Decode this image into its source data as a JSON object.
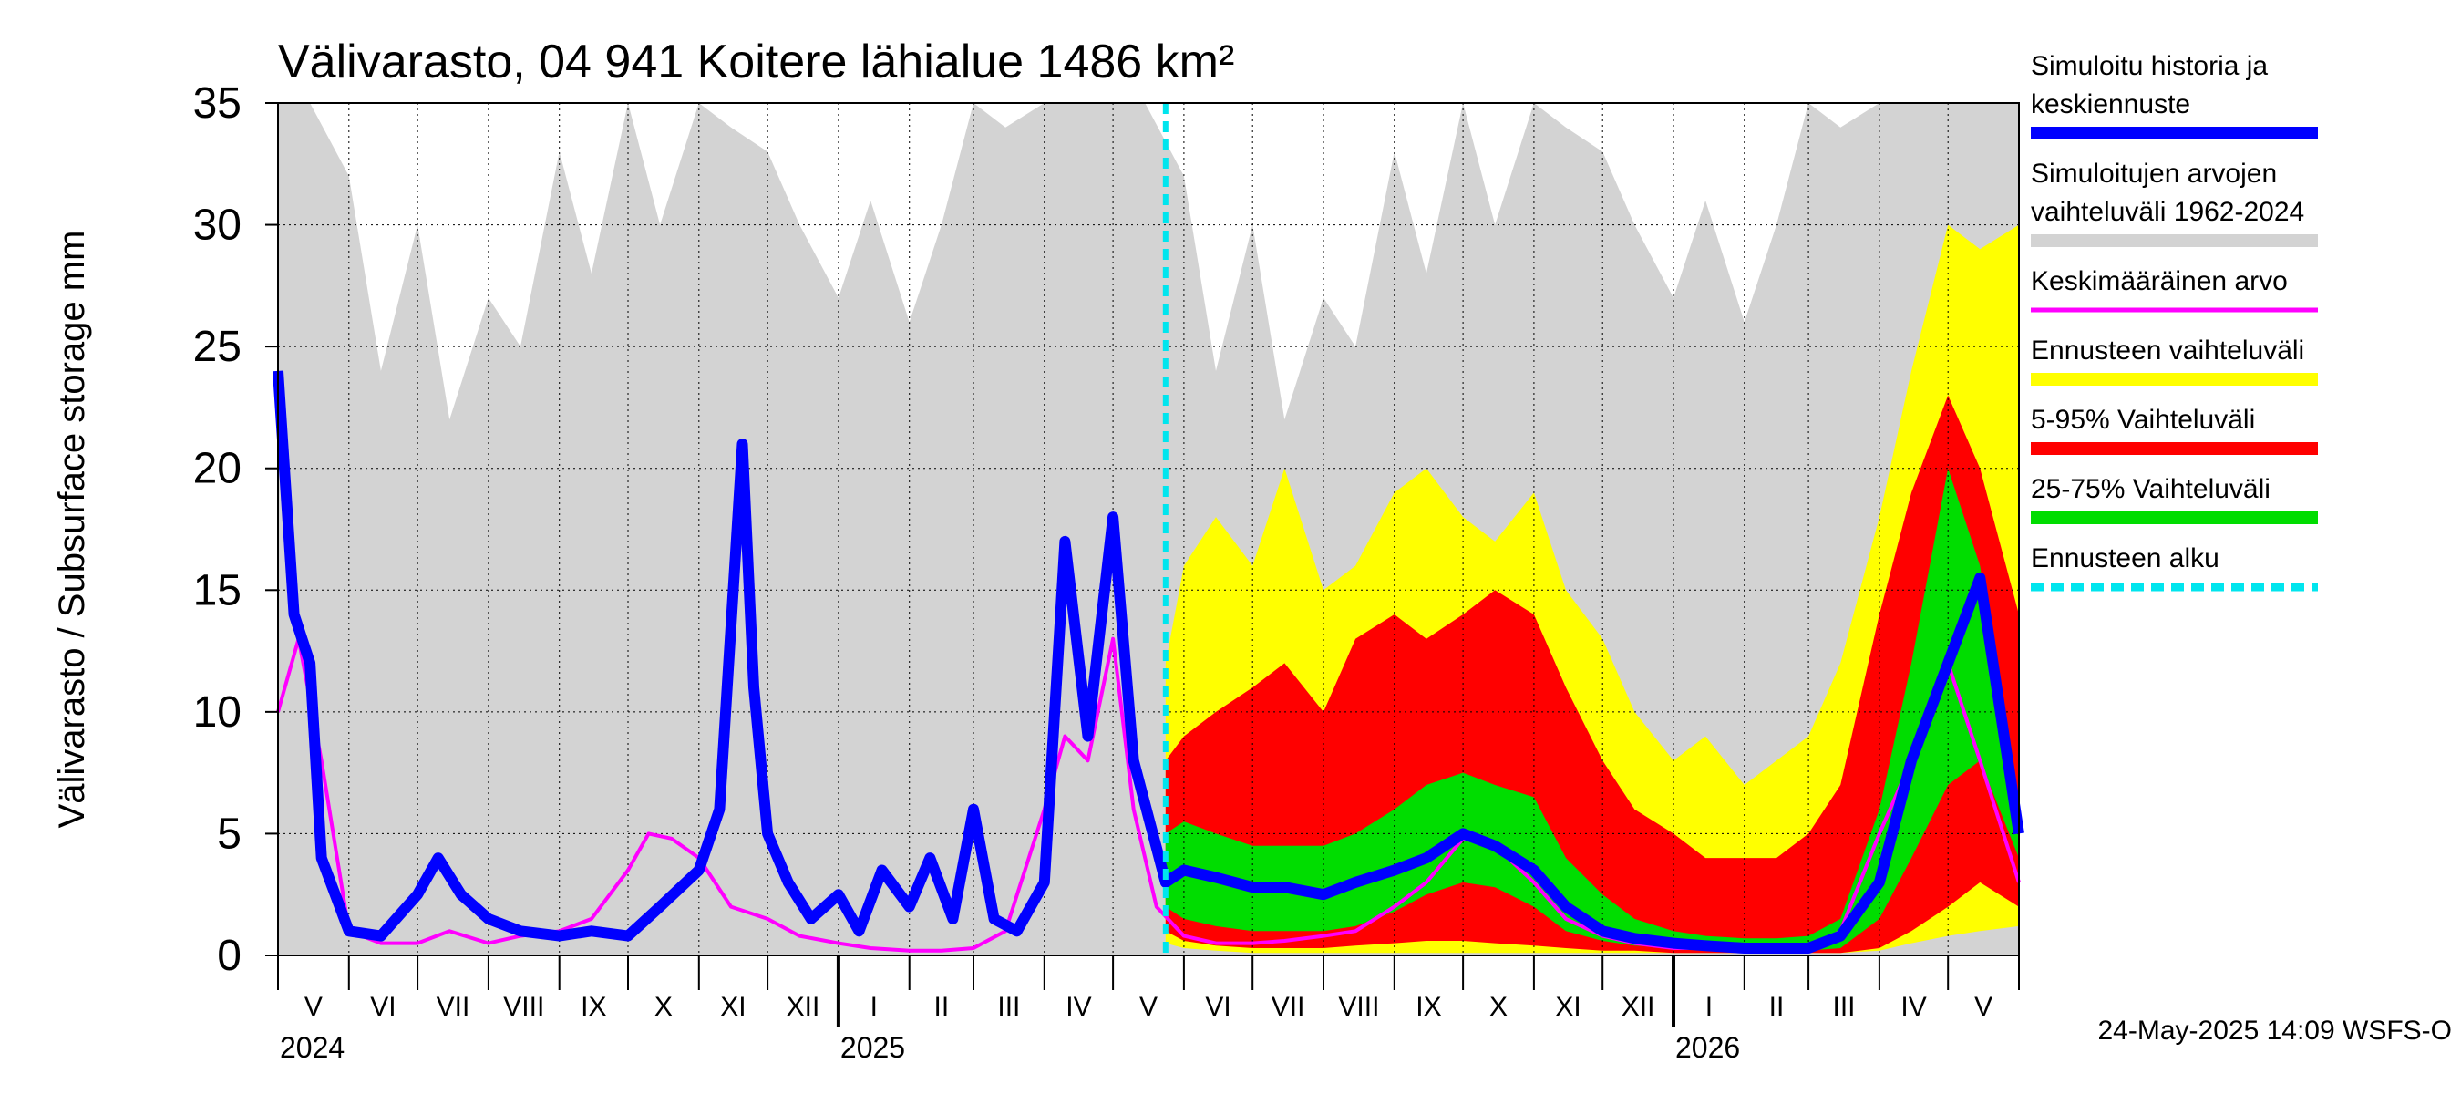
{
  "chart_data": {
    "type": "area",
    "title": "Välivarasto, 04 941 Koitere lähialue 1486 km²",
    "ylabel": "Välivarasto / Subsurface storage  mm",
    "ylim": [
      0,
      35
    ],
    "y_ticks": [
      "0",
      "5",
      "10",
      "15",
      "20",
      "25",
      "30",
      "35"
    ],
    "x_range": [
      "2024-05-01",
      "2026-06-01"
    ],
    "forecast_start": "2025-05-24",
    "grid": true,
    "legend_position": "right",
    "months": [
      {
        "label": "V",
        "start": "2024-05-01",
        "end": "2024-06-01"
      },
      {
        "label": "VI",
        "start": "2024-06-01",
        "end": "2024-07-01"
      },
      {
        "label": "VII",
        "start": "2024-07-01",
        "end": "2024-08-01"
      },
      {
        "label": "VIII",
        "start": "2024-08-01",
        "end": "2024-09-01"
      },
      {
        "label": "IX",
        "start": "2024-09-01",
        "end": "2024-10-01"
      },
      {
        "label": "X",
        "start": "2024-10-01",
        "end": "2024-11-01"
      },
      {
        "label": "XI",
        "start": "2024-11-01",
        "end": "2024-12-01"
      },
      {
        "label": "XII",
        "start": "2024-12-01",
        "end": "2025-01-01"
      },
      {
        "label": "I",
        "start": "2025-01-01",
        "end": "2025-02-01"
      },
      {
        "label": "II",
        "start": "2025-02-01",
        "end": "2025-03-01"
      },
      {
        "label": "III",
        "start": "2025-03-01",
        "end": "2025-04-01"
      },
      {
        "label": "IV",
        "start": "2025-04-01",
        "end": "2025-05-01"
      },
      {
        "label": "V",
        "start": "2025-05-01",
        "end": "2025-06-01"
      },
      {
        "label": "VI",
        "start": "2025-06-01",
        "end": "2025-07-01"
      },
      {
        "label": "VII",
        "start": "2025-07-01",
        "end": "2025-08-01"
      },
      {
        "label": "VIII",
        "start": "2025-08-01",
        "end": "2025-09-01"
      },
      {
        "label": "IX",
        "start": "2025-09-01",
        "end": "2025-10-01"
      },
      {
        "label": "X",
        "start": "2025-10-01",
        "end": "2025-11-01"
      },
      {
        "label": "XI",
        "start": "2025-11-01",
        "end": "2025-12-01"
      },
      {
        "label": "XII",
        "start": "2025-12-01",
        "end": "2026-01-01"
      },
      {
        "label": "I",
        "start": "2026-01-01",
        "end": "2026-02-01"
      },
      {
        "label": "II",
        "start": "2026-02-01",
        "end": "2026-03-01"
      },
      {
        "label": "III",
        "start": "2026-03-01",
        "end": "2026-04-01"
      },
      {
        "label": "IV",
        "start": "2026-04-01",
        "end": "2026-05-01"
      },
      {
        "label": "V",
        "start": "2026-05-01",
        "end": "2026-06-01"
      }
    ],
    "years": [
      {
        "label": "2024",
        "date": "2024-05-01"
      },
      {
        "label": "2025",
        "date": "2025-01-01"
      },
      {
        "label": "2026",
        "date": "2026-01-01"
      }
    ],
    "series": [
      {
        "name": "Simuloitujen arvojen vaihteluväli 1962-2024",
        "color": "#d3d3d3",
        "kind": "band",
        "x": [
          "2024-05-01",
          "2024-05-15",
          "2024-06-01",
          "2024-06-15",
          "2024-07-01",
          "2024-07-15",
          "2024-08-01",
          "2024-08-15",
          "2024-09-01",
          "2024-09-15",
          "2024-10-01",
          "2024-10-15",
          "2024-11-01",
          "2024-11-15",
          "2024-12-01",
          "2024-12-15",
          "2025-01-01",
          "2025-01-15",
          "2025-02-01",
          "2025-02-15",
          "2025-03-01",
          "2025-03-15",
          "2025-04-01",
          "2025-04-15",
          "2025-05-01",
          "2025-05-15",
          "2025-06-01",
          "2025-06-15",
          "2025-07-01",
          "2025-07-15",
          "2025-08-01",
          "2025-08-15",
          "2025-09-01",
          "2025-09-15",
          "2025-10-01",
          "2025-10-15",
          "2025-11-01",
          "2025-11-15",
          "2025-12-01",
          "2025-12-15",
          "2026-01-01",
          "2026-01-15",
          "2026-02-01",
          "2026-02-15",
          "2026-03-01",
          "2026-03-15",
          "2026-04-01",
          "2026-04-15",
          "2026-05-01",
          "2026-05-15",
          "2026-06-01"
        ],
        "lower": [
          0,
          0,
          0,
          0,
          0,
          0,
          0,
          0,
          0,
          0,
          0,
          0,
          0,
          0,
          0,
          0,
          0,
          0,
          0,
          0,
          0,
          0,
          0,
          0,
          0,
          0,
          0,
          0,
          0,
          0,
          0,
          0,
          0,
          0,
          0,
          0,
          0,
          0,
          0,
          0,
          0,
          0,
          0,
          0,
          0,
          0,
          0,
          0,
          0,
          0,
          0
        ],
        "upper": [
          35,
          35,
          32,
          24,
          30,
          22,
          27,
          25,
          33,
          28,
          35,
          30,
          35,
          34,
          33,
          30,
          27,
          31,
          26,
          30,
          35,
          34,
          35,
          35,
          35,
          35,
          32,
          24,
          30,
          22,
          27,
          25,
          33,
          28,
          35,
          30,
          35,
          34,
          33,
          30,
          27,
          31,
          26,
          30,
          35,
          34,
          35,
          35,
          35,
          35,
          35
        ]
      },
      {
        "name": "Ennusteen vaihteluväli",
        "color": "#ffff00",
        "kind": "band",
        "x": [
          "2025-05-24",
          "2025-06-01",
          "2025-06-15",
          "2025-07-01",
          "2025-07-15",
          "2025-08-01",
          "2025-08-15",
          "2025-09-01",
          "2025-09-15",
          "2025-10-01",
          "2025-10-15",
          "2025-11-01",
          "2025-11-15",
          "2025-12-01",
          "2025-12-15",
          "2026-01-01",
          "2026-01-15",
          "2026-02-01",
          "2026-02-15",
          "2026-03-01",
          "2026-03-15",
          "2026-04-01",
          "2026-04-15",
          "2026-05-01",
          "2026-05-15",
          "2026-06-01"
        ],
        "lower": [
          0.5,
          0.3,
          0.2,
          0.1,
          0.1,
          0.1,
          0.1,
          0.1,
          0.1,
          0.1,
          0.1,
          0.1,
          0.1,
          0.1,
          0.1,
          0.1,
          0.1,
          0.1,
          0.1,
          0.1,
          0.1,
          0.2,
          0.5,
          0.8,
          1.0,
          1.2
        ],
        "upper": [
          12,
          16,
          18,
          16,
          20,
          15,
          16,
          19,
          20,
          18,
          17,
          19,
          15,
          13,
          10,
          8,
          9,
          7,
          8,
          9,
          12,
          18,
          24,
          30,
          29,
          30
        ]
      },
      {
        "name": "5-95% Vaihteluväli",
        "color": "#ff0000",
        "kind": "band",
        "x": [
          "2025-05-24",
          "2025-06-01",
          "2025-06-15",
          "2025-07-01",
          "2025-07-15",
          "2025-08-01",
          "2025-08-15",
          "2025-09-01",
          "2025-09-15",
          "2025-10-01",
          "2025-10-15",
          "2025-11-01",
          "2025-11-15",
          "2025-12-01",
          "2025-12-15",
          "2026-01-01",
          "2026-01-15",
          "2026-02-01",
          "2026-02-15",
          "2026-03-01",
          "2026-03-15",
          "2026-04-01",
          "2026-04-15",
          "2026-05-01",
          "2026-05-15",
          "2026-06-01"
        ],
        "lower": [
          1.0,
          0.6,
          0.4,
          0.3,
          0.3,
          0.3,
          0.4,
          0.5,
          0.6,
          0.6,
          0.5,
          0.4,
          0.3,
          0.2,
          0.2,
          0.1,
          0.1,
          0.1,
          0.1,
          0.1,
          0.1,
          0.3,
          1.0,
          2.0,
          3.0,
          2.0
        ],
        "upper": [
          8,
          9,
          10,
          11,
          12,
          10,
          13,
          14,
          13,
          14,
          15,
          14,
          11,
          8,
          6,
          5,
          4,
          4,
          4,
          5,
          7,
          14,
          19,
          23,
          20,
          14
        ]
      },
      {
        "name": "25-75% Vaihteluväli",
        "color": "#00dd00",
        "kind": "band",
        "x": [
          "2025-05-24",
          "2025-06-01",
          "2025-06-15",
          "2025-07-01",
          "2025-07-15",
          "2025-08-01",
          "2025-08-15",
          "2025-09-01",
          "2025-09-15",
          "2025-10-01",
          "2025-10-15",
          "2025-11-01",
          "2025-11-15",
          "2025-12-01",
          "2025-12-15",
          "2026-01-01",
          "2026-01-15",
          "2026-02-01",
          "2026-02-15",
          "2026-03-01",
          "2026-03-15",
          "2026-04-01",
          "2026-04-15",
          "2026-05-01",
          "2026-05-15",
          "2026-06-01"
        ],
        "lower": [
          2.0,
          1.5,
          1.2,
          1.0,
          1.0,
          1.0,
          1.2,
          1.8,
          2.5,
          3.0,
          2.8,
          2.0,
          1.0,
          0.6,
          0.4,
          0.3,
          0.2,
          0.2,
          0.2,
          0.2,
          0.3,
          1.5,
          4.0,
          7.0,
          8.0,
          4.0
        ],
        "upper": [
          5,
          5.5,
          5.0,
          4.5,
          4.5,
          4.5,
          5.0,
          6.0,
          7.0,
          7.5,
          7.0,
          6.5,
          4.0,
          2.5,
          1.5,
          1.0,
          0.8,
          0.7,
          0.7,
          0.8,
          1.5,
          6.0,
          12.0,
          20.0,
          16.0,
          6.0
        ]
      },
      {
        "name": "Keskimääräinen arvo",
        "color": "#ff00ff",
        "kind": "line",
        "x": [
          "2024-05-01",
          "2024-05-10",
          "2024-05-20",
          "2024-06-01",
          "2024-06-15",
          "2024-07-01",
          "2024-07-15",
          "2024-08-01",
          "2024-08-15",
          "2024-09-01",
          "2024-09-15",
          "2024-10-01",
          "2024-10-10",
          "2024-10-20",
          "2024-11-01",
          "2024-11-15",
          "2024-12-01",
          "2024-12-15",
          "2025-01-01",
          "2025-01-15",
          "2025-02-01",
          "2025-02-15",
          "2025-03-01",
          "2025-03-15",
          "2025-04-01",
          "2025-04-10",
          "2025-04-20",
          "2025-05-01",
          "2025-05-10",
          "2025-05-20",
          "2025-06-01",
          "2025-06-15",
          "2025-07-01",
          "2025-07-15",
          "2025-08-01",
          "2025-08-15",
          "2025-09-01",
          "2025-09-15",
          "2025-10-01",
          "2025-10-15",
          "2025-11-01",
          "2025-11-15",
          "2025-12-01",
          "2025-12-15",
          "2026-01-01",
          "2026-01-15",
          "2026-02-01",
          "2026-02-15",
          "2026-03-01",
          "2026-03-15",
          "2026-04-01",
          "2026-04-15",
          "2026-05-01",
          "2026-05-15",
          "2026-06-01"
        ],
        "values": [
          10,
          13,
          8,
          1,
          0.5,
          0.5,
          1,
          0.5,
          0.8,
          1.0,
          1.5,
          3.5,
          5.0,
          4.8,
          4.0,
          2.0,
          1.5,
          0.8,
          0.5,
          0.3,
          0.2,
          0.2,
          0.3,
          1.0,
          6.0,
          9.0,
          8.0,
          13.0,
          6.0,
          2.0,
          0.8,
          0.5,
          0.5,
          0.6,
          0.8,
          1.0,
          2.0,
          3.0,
          4.8,
          4.5,
          3.0,
          1.5,
          0.8,
          0.5,
          0.3,
          0.3,
          0.2,
          0.2,
          0.2,
          1.0,
          5.0,
          8.0,
          12.0,
          8.0,
          3.0
        ]
      },
      {
        "name": "Simuloitu historia ja keskiennuste",
        "color": "#0000ff",
        "kind": "line",
        "x": [
          "2024-05-01",
          "2024-05-08",
          "2024-05-15",
          "2024-05-20",
          "2024-06-01",
          "2024-06-15",
          "2024-07-01",
          "2024-07-10",
          "2024-07-20",
          "2024-08-01",
          "2024-08-15",
          "2024-09-01",
          "2024-09-15",
          "2024-10-01",
          "2024-10-15",
          "2024-11-01",
          "2024-11-10",
          "2024-11-20",
          "2024-11-25",
          "2024-12-01",
          "2024-12-10",
          "2024-12-20",
          "2025-01-01",
          "2025-01-10",
          "2025-01-20",
          "2025-02-01",
          "2025-02-10",
          "2025-02-20",
          "2025-03-01",
          "2025-03-10",
          "2025-03-20",
          "2025-04-01",
          "2025-04-10",
          "2025-04-20",
          "2025-05-01",
          "2025-05-10",
          "2025-05-24",
          "2025-06-01",
          "2025-06-15",
          "2025-07-01",
          "2025-07-15",
          "2025-08-01",
          "2025-08-15",
          "2025-09-01",
          "2025-09-15",
          "2025-10-01",
          "2025-10-15",
          "2025-11-01",
          "2025-11-15",
          "2025-12-01",
          "2025-12-15",
          "2026-01-01",
          "2026-01-15",
          "2026-02-01",
          "2026-02-15",
          "2026-03-01",
          "2026-03-15",
          "2026-04-01",
          "2026-04-15",
          "2026-05-01",
          "2026-05-15",
          "2026-06-01"
        ],
        "values": [
          24,
          14,
          12,
          4,
          1,
          0.8,
          2.5,
          4,
          2.5,
          1.5,
          1.0,
          0.8,
          1.0,
          0.8,
          2.0,
          3.5,
          6.0,
          21.0,
          11.0,
          5.0,
          3.0,
          1.5,
          2.5,
          1.0,
          3.5,
          2.0,
          4.0,
          1.5,
          6.0,
          1.5,
          1.0,
          3.0,
          17.0,
          9.0,
          18.0,
          8.0,
          3.0,
          3.5,
          3.2,
          2.8,
          2.8,
          2.5,
          3.0,
          3.5,
          4.0,
          5.0,
          4.5,
          3.5,
          2.0,
          1.0,
          0.7,
          0.5,
          0.4,
          0.3,
          0.3,
          0.3,
          0.8,
          3.0,
          8.0,
          12.0,
          15.5,
          5.0
        ]
      }
    ],
    "legend": [
      {
        "label": "Simuloitu historia ja keskiennuste",
        "color": "#0000ff",
        "style": "solid"
      },
      {
        "label": "Simuloitujen arvojen vaihteluväli 1962-2024",
        "color": "#d3d3d3",
        "style": "solid"
      },
      {
        "label": "Keskimääräinen arvo",
        "color": "#ff00ff",
        "style": "thin"
      },
      {
        "label": "Ennusteen vaihteluväli",
        "color": "#ffff00",
        "style": "solid"
      },
      {
        "label": "5-95% Vaihteluväli",
        "color": "#ff0000",
        "style": "solid"
      },
      {
        "label": "25-75% Vaihteluväli",
        "color": "#00dd00",
        "style": "solid"
      },
      {
        "label": "Ennusteen alku",
        "color": "#00e5ee",
        "style": "dashed"
      }
    ],
    "legend_lines": [
      [
        "Simuloitu historia ja",
        "keskiennuste"
      ],
      [
        "Simuloitujen arvojen",
        "vaihteluväli 1962-2024"
      ],
      [
        "Keskimääräinen arvo"
      ],
      [
        "Ennusteen vaihteluväli"
      ],
      [
        "5-95% Vaihteluväli"
      ],
      [
        "25-75% Vaihteluväli"
      ],
      [
        "Ennusteen alku"
      ]
    ],
    "forecast_line_color": "#00e5ee",
    "timestamp": "24-May-2025 14:09 WSFS-O"
  }
}
